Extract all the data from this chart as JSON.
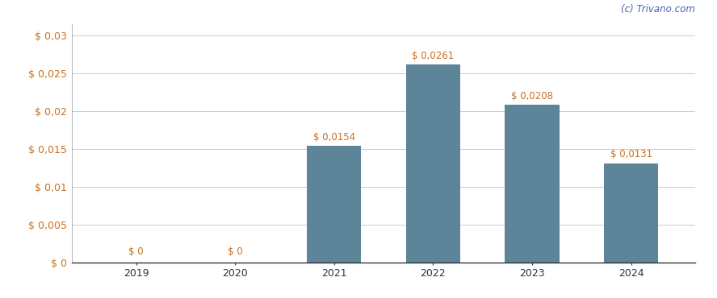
{
  "categories": [
    "2019",
    "2020",
    "2021",
    "2022",
    "2023",
    "2024"
  ],
  "values": [
    0,
    0,
    0.0154,
    0.0261,
    0.0208,
    0.0131
  ],
  "bar_color": "#5d8499",
  "bar_labels": [
    "$ 0",
    "$ 0",
    "$ 0,0154",
    "$ 0,0261",
    "$ 0,0208",
    "$ 0,0131"
  ],
  "ylim": [
    0,
    0.0315
  ],
  "yticks": [
    0,
    0.005,
    0.01,
    0.015,
    0.02,
    0.025,
    0.03
  ],
  "ytick_labels": [
    "$ 0",
    "$ 0,005",
    "$ 0,01",
    "$ 0,015",
    "$ 0,02",
    "$ 0,025",
    "$ 0,03"
  ],
  "watermark": "(c) Trivano.com",
  "background_color": "#ffffff",
  "grid_color": "#cccccc",
  "label_color": "#c87020",
  "label_fontsize": 8.5,
  "axis_fontsize": 9,
  "watermark_color": "#4466aa",
  "bar_width": 0.55
}
